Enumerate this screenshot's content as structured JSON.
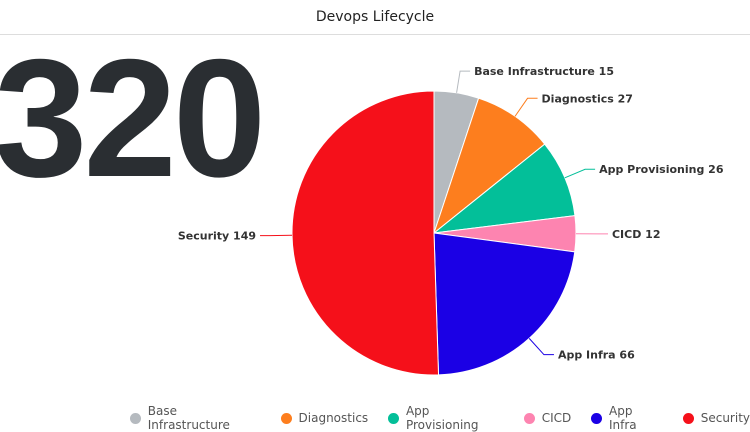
{
  "header": {
    "title": "Devops Lifecycle"
  },
  "kpi": {
    "value": "320"
  },
  "chart_data": {
    "type": "pie",
    "title": "Devops Lifecycle",
    "legend_position": "bottom",
    "slices": [
      {
        "label": "Base Infrastructure",
        "value": 15,
        "color": "#b5babf",
        "text": "Base Infrastructure 15"
      },
      {
        "label": "Diagnostics",
        "value": 27,
        "color": "#fd7e1e",
        "text": "Diagnostics 27"
      },
      {
        "label": "App Provisioning",
        "value": 26,
        "color": "#03bf99",
        "text": "App Provisioning 26"
      },
      {
        "label": "CICD",
        "value": 12,
        "color": "#fd84b0",
        "text": "CICD 12"
      },
      {
        "label": "App Infra",
        "value": 66,
        "color": "#1b00e5",
        "text": "App Infra 66"
      },
      {
        "label": "Security",
        "value": 149,
        "color": "#f5101a",
        "text": "Security 149"
      }
    ]
  }
}
